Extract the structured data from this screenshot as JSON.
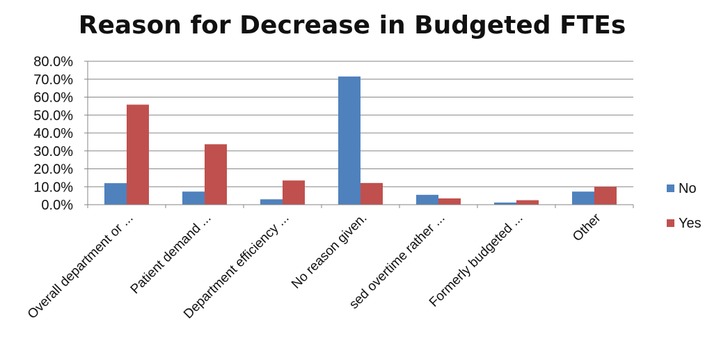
{
  "chart_data": {
    "type": "bar",
    "title": "Reason for Decrease in Budgeted FTEs",
    "xlabel": "",
    "ylabel": "",
    "categories": [
      "Overall department or ...",
      "Patient demand ...",
      "Department efficiency ...",
      "No reason given.",
      "sed overtime rather ...",
      "Formerly budgeted ...",
      "Other"
    ],
    "series": [
      {
        "name": "No",
        "color": "#4F81BD",
        "values": [
          12.0,
          7.3,
          3.0,
          71.5,
          5.5,
          1.2,
          7.3
        ]
      },
      {
        "name": "Yes",
        "color": "#C0504D",
        "values": [
          55.8,
          33.7,
          13.5,
          12.1,
          3.5,
          2.5,
          10.0
        ]
      }
    ],
    "ylim": [
      0,
      80
    ],
    "yticks": [
      "0.0%",
      "10.0%",
      "20.0%",
      "30.0%",
      "40.0%",
      "50.0%",
      "60.0%",
      "70.0%",
      "80.0%"
    ],
    "grid": true,
    "legend_position": "right"
  }
}
